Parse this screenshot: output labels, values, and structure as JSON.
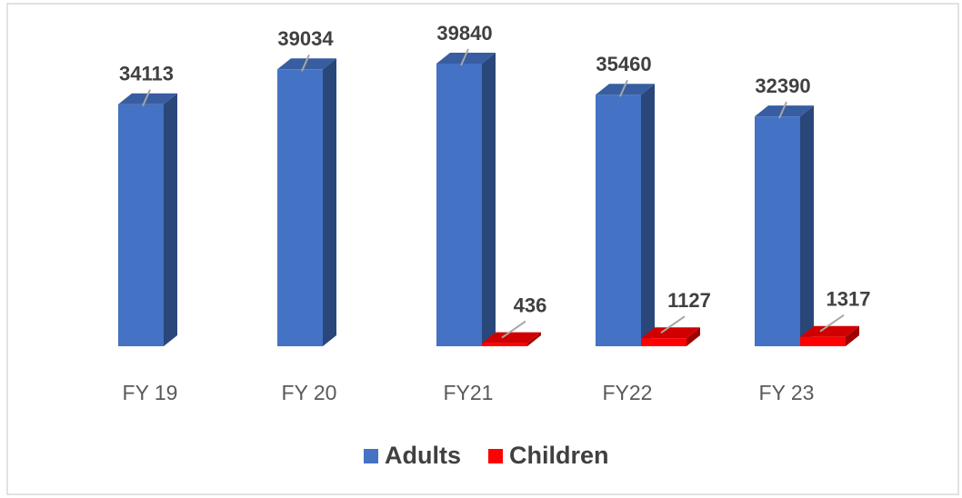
{
  "chart_data": {
    "type": "bar3d",
    "categories": [
      "FY 19",
      "FY 20",
      "FY21",
      "FY22",
      "FY 23"
    ],
    "series": [
      {
        "name": "Adults",
        "color": "#4472c4",
        "values": [
          34113,
          39034,
          39840,
          35460,
          32390
        ]
      },
      {
        "name": "Children",
        "color": "#ff0000",
        "values": [
          null,
          null,
          436,
          1127,
          1317
        ]
      }
    ],
    "legend": "bottom"
  }
}
